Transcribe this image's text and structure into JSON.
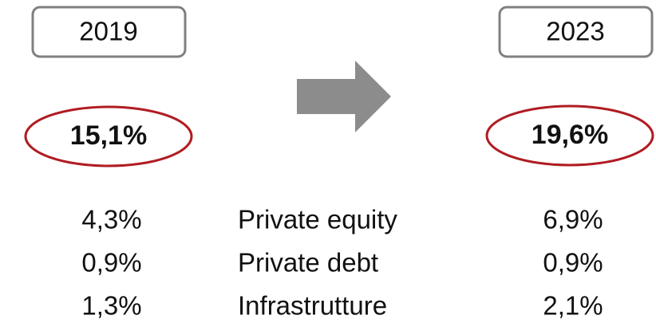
{
  "left": {
    "year": "2019",
    "total": "15,1%"
  },
  "right": {
    "year": "2023",
    "total": "19,6%"
  },
  "rows": [
    {
      "label": "Private equity",
      "left": "4,3%",
      "right": "6,9%"
    },
    {
      "label": "Private debt",
      "left": "0,9%",
      "right": "0,9%"
    },
    {
      "label": "Infrastrutture",
      "left": "1,3%",
      "right": "2,1%"
    }
  ]
}
